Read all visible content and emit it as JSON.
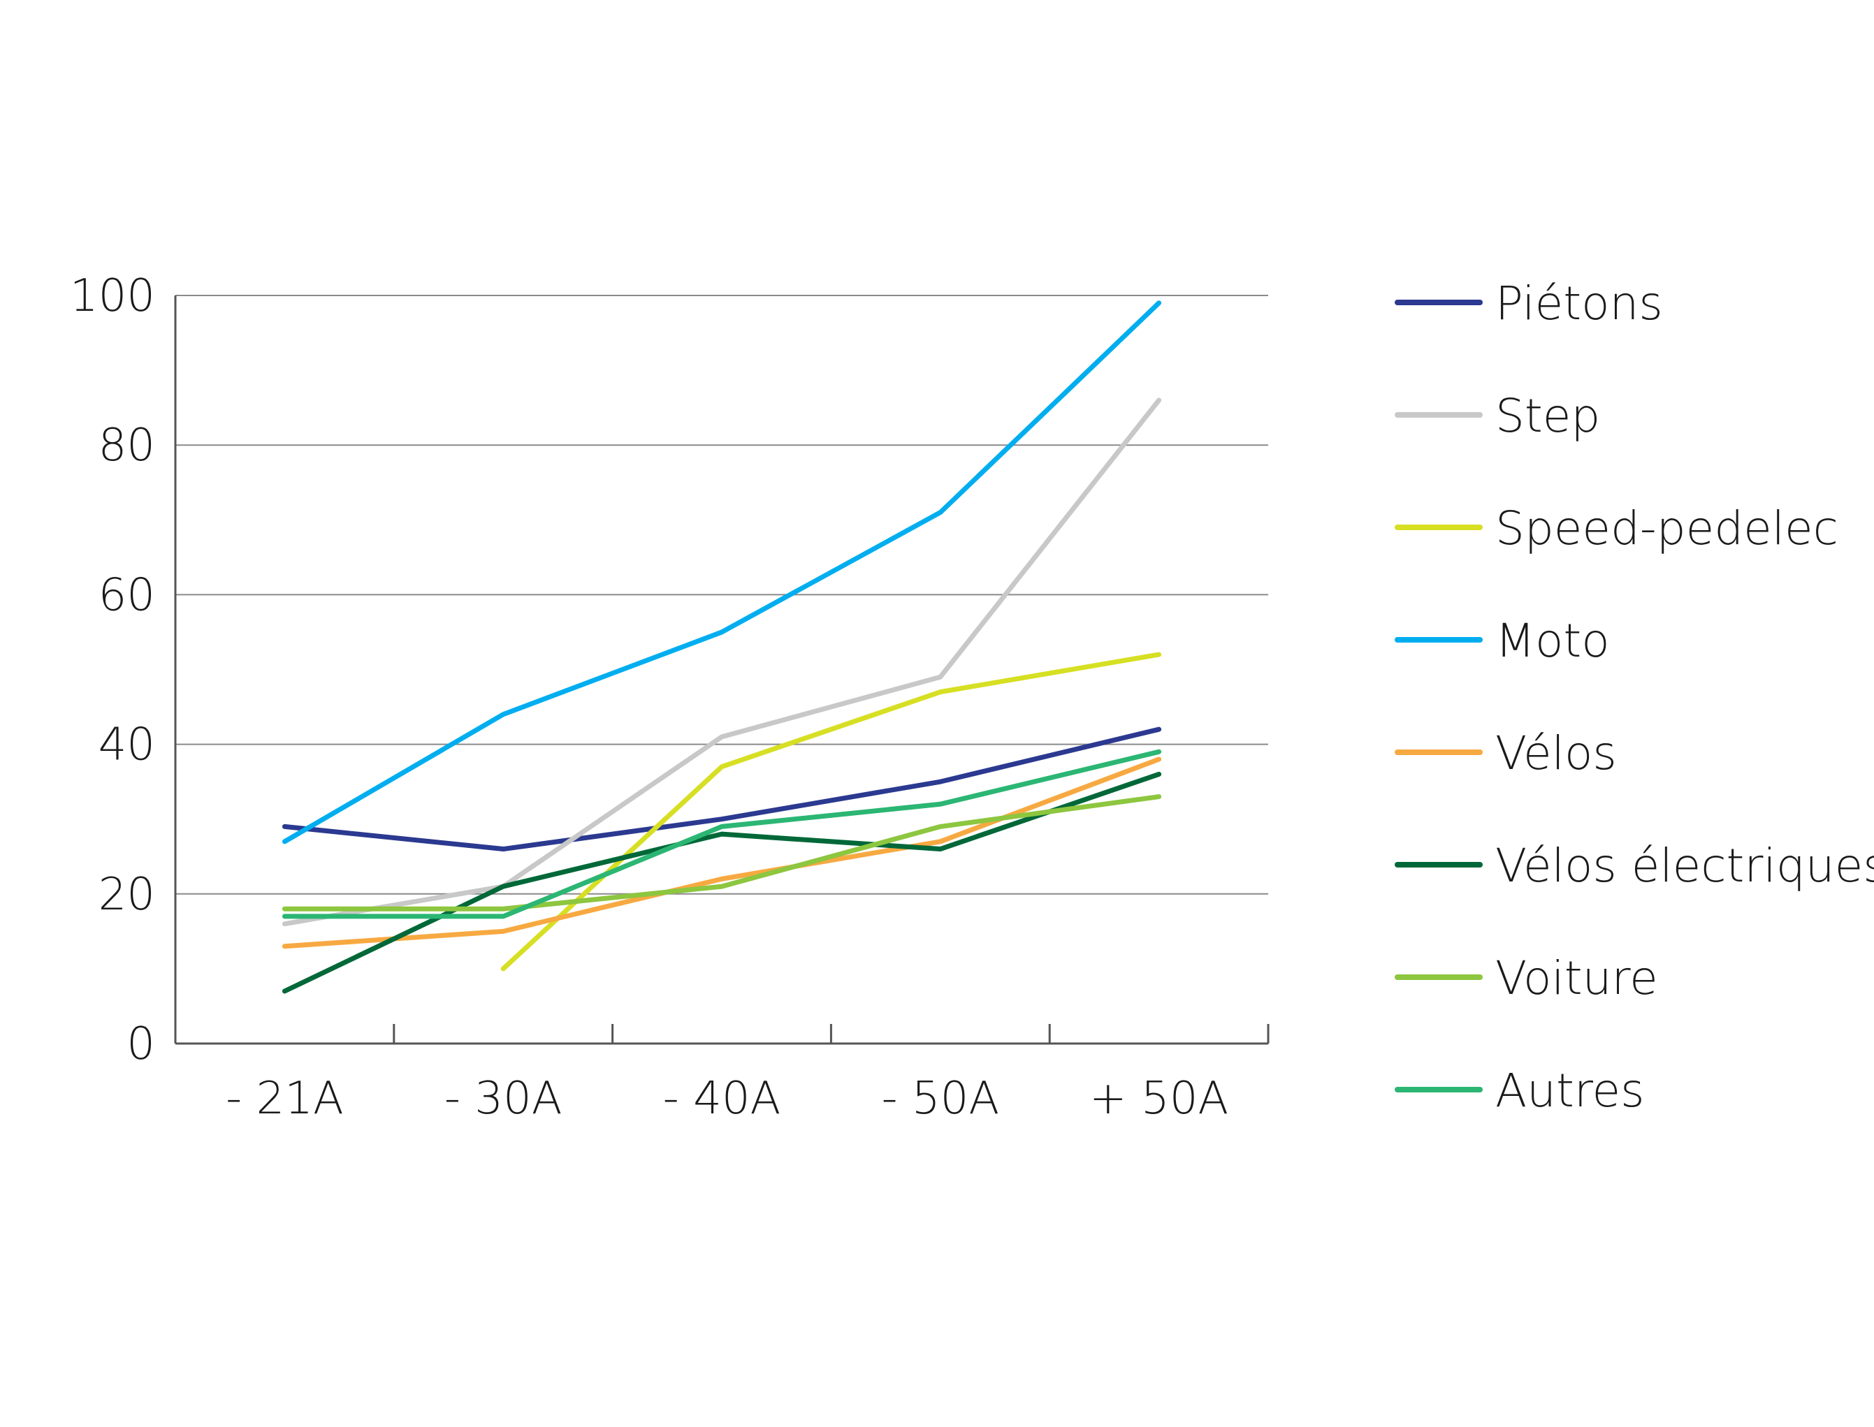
{
  "chart_data": {
    "type": "line",
    "title": "",
    "xlabel": "",
    "ylabel": "",
    "categories": [
      "- 21A",
      "- 30A",
      "- 40A",
      "- 50A",
      "+ 50A"
    ],
    "ylim": [
      0,
      100
    ],
    "yticks": [
      "0",
      "20",
      "40",
      "60",
      "80",
      "100"
    ],
    "grid": "horizontal",
    "legend_position": "right",
    "series": [
      {
        "name": "Piétons",
        "color": "#2b3990",
        "values": [
          29,
          26,
          30,
          35,
          42
        ]
      },
      {
        "name": "Step",
        "color": "#c8c8c8",
        "values": [
          16,
          21,
          41,
          49,
          86
        ]
      },
      {
        "name": "Speed-pedelec",
        "color": "#d7df23",
        "values": [
          null,
          10,
          37,
          47,
          52
        ]
      },
      {
        "name": "Moto",
        "color": "#00aeef",
        "values": [
          27,
          44,
          55,
          71,
          99
        ]
      },
      {
        "name": "Vélos",
        "color": "#f7a941",
        "values": [
          13,
          15,
          22,
          27,
          38
        ]
      },
      {
        "name": "Vélos électriques",
        "color": "#006838",
        "values": [
          7,
          21,
          28,
          26,
          36
        ]
      },
      {
        "name": "Voiture",
        "color": "#8dc63f",
        "values": [
          18,
          18,
          21,
          29,
          33
        ]
      },
      {
        "name": "Autres",
        "color": "#2bb673",
        "values": [
          17,
          17,
          29,
          32,
          39
        ]
      }
    ]
  }
}
